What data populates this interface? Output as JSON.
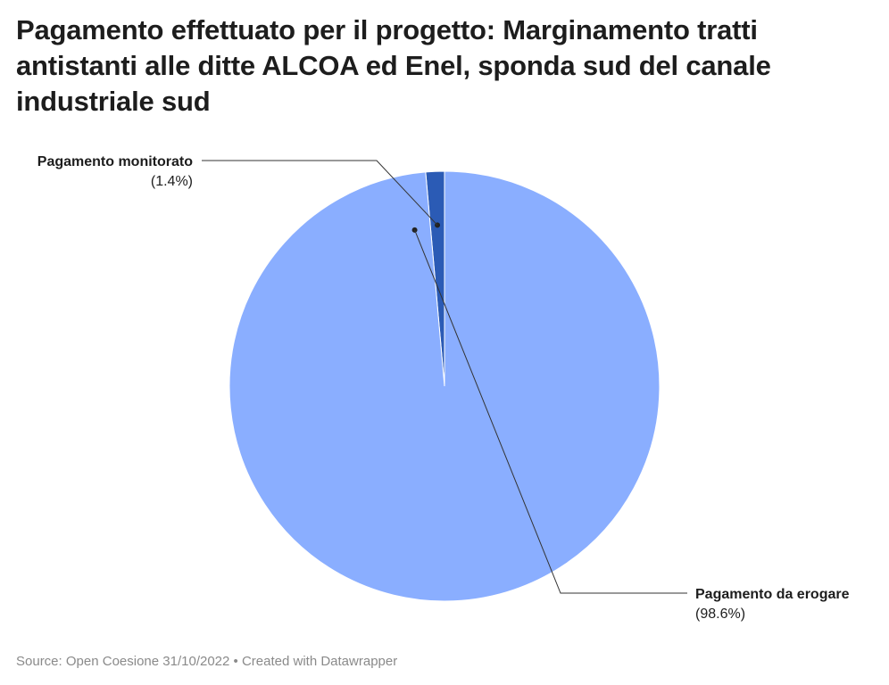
{
  "title": "Pagamento effettuato per il progetto: Marginamento tratti antistanti alle ditte ALCOA ed Enel, sponda sud del canale industriale sud",
  "footer": {
    "source_label": "Source:",
    "source": "Open Coesione 31/10/2022",
    "separator": "•",
    "credit": "Created with Datawrapper"
  },
  "chart_data": {
    "type": "pie",
    "title": "Pagamento effettuato per il progetto: Marginamento tratti antistanti alle ditte ALCOA ed Enel, sponda sud del canale industriale sud",
    "slices": [
      {
        "label": "Pagamento monitorato",
        "value": 1.4,
        "display": "(1.4%)",
        "color": "#2b5bb5"
      },
      {
        "label": "Pagamento da erogare",
        "value": 98.6,
        "display": "(98.6%)",
        "color": "#8aaeff"
      }
    ],
    "unit": "%"
  }
}
